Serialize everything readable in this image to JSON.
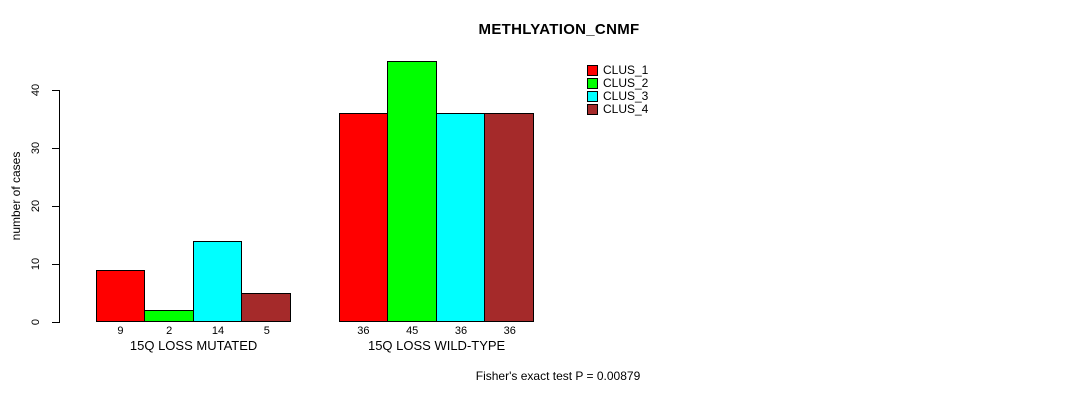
{
  "title": "METHLYATION_CNMF",
  "chart_data": {
    "type": "bar",
    "title": "METHLYATION_CNMF",
    "categories": [
      "15Q LOSS MUTATED",
      "15Q LOSS WILD-TYPE"
    ],
    "series": [
      {
        "name": "CLUS_1",
        "color": "#FF0000",
        "values": [
          9,
          36
        ]
      },
      {
        "name": "CLUS_2",
        "color": "#00FF00",
        "values": [
          2,
          45
        ]
      },
      {
        "name": "CLUS_3",
        "color": "#00FFFF",
        "values": [
          14,
          36
        ]
      },
      {
        "name": "CLUS_4",
        "color": "#A52A2A",
        "values": [
          5,
          36
        ]
      }
    ],
    "xlabel": "",
    "ylabel": "number of cases",
    "ylim": [
      0,
      45
    ],
    "yticks": [
      0,
      10,
      20,
      30,
      40
    ],
    "bar_value_labels": true,
    "grid": false,
    "legend_position": "top-right",
    "annotation": "Fisher's exact test P = 0.00879"
  }
}
